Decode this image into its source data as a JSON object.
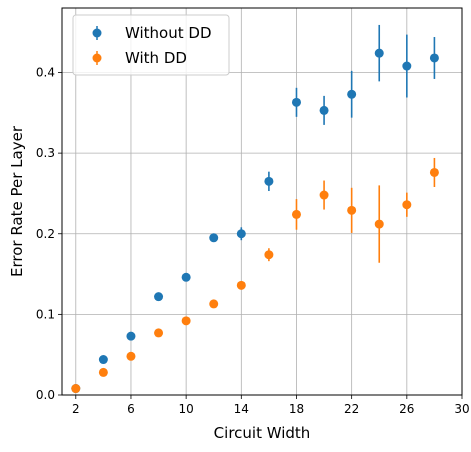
{
  "chart_data": {
    "type": "scatter",
    "xlabel": "Circuit Width",
    "ylabel": "Error Rate Per Layer",
    "xlim": [
      1,
      30
    ],
    "ylim": [
      0,
      0.48
    ],
    "xticks": [
      2,
      6,
      10,
      14,
      18,
      22,
      26,
      30
    ],
    "yticks": [
      0.0,
      0.1,
      0.2,
      0.3,
      0.4
    ],
    "grid": true,
    "legend_position": "top-left",
    "series": [
      {
        "name": "Without DD",
        "color": "#1f77b4",
        "x": [
          2,
          4,
          6,
          8,
          10,
          12,
          14,
          16,
          18,
          20,
          22,
          24,
          26,
          28
        ],
        "y": [
          0.008,
          0.044,
          0.073,
          0.122,
          0.146,
          0.195,
          0.2,
          0.265,
          0.363,
          0.353,
          0.373,
          0.424,
          0.408,
          0.418
        ],
        "err": [
          0.003,
          0.003,
          0.004,
          0.003,
          0.004,
          0.005,
          0.008,
          0.012,
          0.018,
          0.018,
          0.029,
          0.035,
          0.039,
          0.026
        ]
      },
      {
        "name": "With DD",
        "color": "#ff7f0e",
        "x": [
          2,
          4,
          6,
          8,
          10,
          12,
          14,
          16,
          18,
          20,
          22,
          24,
          26,
          28
        ],
        "y": [
          0.008,
          0.028,
          0.048,
          0.077,
          0.092,
          0.113,
          0.136,
          0.174,
          0.224,
          0.248,
          0.229,
          0.212,
          0.236,
          0.276
        ],
        "err": [
          0.002,
          0.002,
          0.003,
          0.003,
          0.004,
          0.004,
          0.005,
          0.008,
          0.019,
          0.018,
          0.028,
          0.048,
          0.015,
          0.018
        ]
      }
    ]
  }
}
